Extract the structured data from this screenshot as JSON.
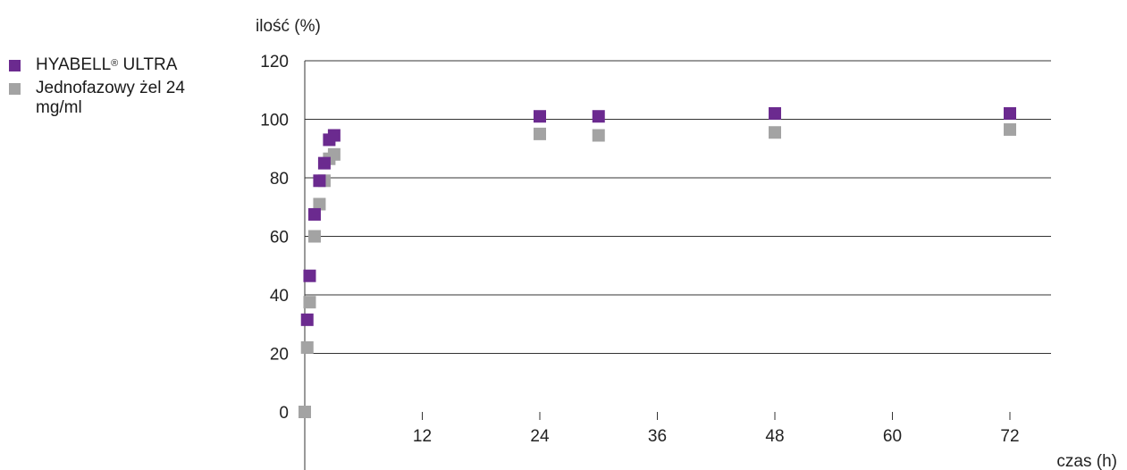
{
  "colors": {
    "purple": "#6b2a8f",
    "gray": "#a3a3a3",
    "grid": "#333333"
  },
  "legend": {
    "items": [
      {
        "label_main": "HYABELL",
        "label_sup": "®",
        "label_rest": " ULTRA",
        "color": "#6b2a8f"
      },
      {
        "label": "Jednofazowy żel 24 mg/ml",
        "color": "#a3a3a3"
      }
    ]
  },
  "chart_data": {
    "type": "scatter",
    "title": "",
    "xlabel": "czas (h)",
    "ylabel": "ilość (%)",
    "xlim": [
      0,
      76
    ],
    "ylim": [
      0,
      120
    ],
    "x_ticks": [
      "12",
      "24",
      "36",
      "48",
      "60",
      "72"
    ],
    "y_ticks": [
      "0",
      "20",
      "40",
      "60",
      "80",
      "100",
      "120"
    ],
    "grid": "horizontal",
    "legend_position": "left",
    "series": [
      {
        "name": "HYABELL® ULTRA",
        "color": "#6b2a8f",
        "points": [
          [
            0.25,
            31.5
          ],
          [
            0.5,
            46.5
          ],
          [
            1,
            67.5
          ],
          [
            1.5,
            79
          ],
          [
            2,
            85
          ],
          [
            2.5,
            93
          ],
          [
            3,
            94.5
          ],
          [
            24,
            101
          ],
          [
            30,
            101
          ],
          [
            48,
            102
          ],
          [
            72,
            102
          ]
        ]
      },
      {
        "name": "Jednofazowy żel 24 mg/ml",
        "color": "#a3a3a3",
        "points": [
          [
            0,
            0
          ],
          [
            0.25,
            22
          ],
          [
            0.5,
            37.5
          ],
          [
            1,
            60
          ],
          [
            1.5,
            71
          ],
          [
            2,
            79
          ],
          [
            2.5,
            86.5
          ],
          [
            3,
            88
          ],
          [
            24,
            95
          ],
          [
            30,
            94.5
          ],
          [
            48,
            95.5
          ],
          [
            72,
            96.5
          ]
        ]
      }
    ]
  }
}
